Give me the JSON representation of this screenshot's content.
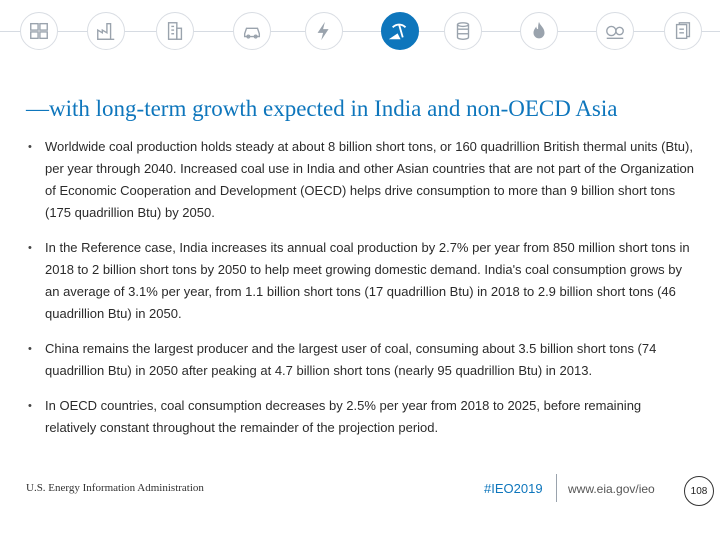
{
  "nav": {
    "icons": [
      {
        "name": "overview-icon",
        "active": false
      },
      {
        "name": "industrial-icon",
        "active": false
      },
      {
        "name": "buildings-icon",
        "active": false
      },
      {
        "name": "transportation-icon",
        "active": false
      },
      {
        "name": "electricity-icon",
        "active": false
      },
      {
        "name": "coal-mining-icon",
        "active": true
      },
      {
        "name": "petroleum-barrel-icon",
        "active": false
      },
      {
        "name": "natural-gas-flame-icon",
        "active": false
      },
      {
        "name": "energy-consumption-icon",
        "active": false
      },
      {
        "name": "documents-icon",
        "active": false
      }
    ],
    "active_color": "#0e76bc"
  },
  "slide": {
    "title": "—with long-term growth expected in India and non-OECD Asia",
    "bullet_marker": "•",
    "bullets": [
      "Worldwide coal production holds steady at about 8 billion short tons, or 160 quadrillion British thermal units (Btu), per year through 2040. Increased coal use in India and other Asian countries that are not part of the Organization of Economic Cooperation and Development (OECD) helps drive consumption to more than 9 billion short tons (175 quadrillion Btu) by 2050.",
      "In the Reference case, India increases its annual coal production by 2.7% per year from 850 million short tons in 2018 to 2 billion short tons by 2050 to help meet growing domestic demand. India's coal consumption grows by an average of 3.1% per year, from 1.1 billion short tons (17 quadrillion Btu) in 2018 to 2.9 billion short tons (46 quadrillion Btu) in 2050.",
      "China remains the largest producer and the largest user of coal, consuming about 3.5 billion short tons (74 quadrillion Btu) in 2050 after peaking at 4.7 billion short tons (nearly 95 quadrillion Btu) in 2013.",
      "In OECD countries, coal consumption decreases by 2.5% per year from 2018 to 2025, before remaining relatively constant throughout the remainder of the projection period."
    ]
  },
  "footer": {
    "agency": "U.S. Energy Information Administration",
    "hashtag": "#IEO2019",
    "url": "www.eia.gov/ieo",
    "page_number": "108"
  }
}
